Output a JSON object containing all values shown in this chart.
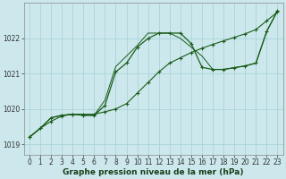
{
  "xlabel": "Graphe pression niveau de la mer (hPa)",
  "bg_color": "#cce8ec",
  "grid_color": "#aad4d8",
  "line_color": "#1a5c1a",
  "ylim": [
    1018.7,
    1023.0
  ],
  "xlim": [
    -0.5,
    23.5
  ],
  "yticks": [
    1019,
    1020,
    1021,
    1022
  ],
  "xticks": [
    0,
    1,
    2,
    3,
    4,
    5,
    6,
    7,
    8,
    9,
    10,
    11,
    12,
    13,
    14,
    15,
    16,
    17,
    18,
    19,
    20,
    21,
    22,
    23
  ],
  "line1_x": [
    0,
    1,
    2,
    3,
    4,
    5,
    6,
    7,
    8,
    9,
    10,
    11,
    12,
    13,
    14,
    15,
    16,
    17,
    18,
    19,
    20,
    21,
    22,
    23
  ],
  "line1_y": [
    1019.2,
    1019.45,
    1019.65,
    1019.8,
    1019.85,
    1019.85,
    1019.85,
    1019.92,
    1020.0,
    1020.15,
    1020.45,
    1020.75,
    1021.05,
    1021.3,
    1021.45,
    1021.6,
    1021.72,
    1021.83,
    1021.93,
    1022.03,
    1022.13,
    1022.25,
    1022.5,
    1022.75
  ],
  "line2_x": [
    0,
    1,
    2,
    3,
    4,
    5,
    6,
    7,
    8,
    9,
    10,
    11,
    12,
    13,
    14,
    15,
    16,
    17,
    18,
    19,
    20,
    21,
    22,
    23
  ],
  "line2_y": [
    1019.2,
    1019.45,
    1019.75,
    1019.82,
    1019.85,
    1019.82,
    1019.82,
    1020.1,
    1021.05,
    1021.3,
    1021.75,
    1022.0,
    1022.15,
    1022.15,
    1022.15,
    1021.85,
    1021.18,
    1021.12,
    1021.12,
    1021.17,
    1021.22,
    1021.3,
    1022.2,
    1022.78
  ],
  "line3_x": [
    0,
    1,
    2,
    3,
    4,
    5,
    6,
    7,
    8,
    9,
    10,
    11,
    12,
    13,
    14,
    15,
    16,
    17,
    18,
    19,
    20,
    21,
    22,
    23
  ],
  "line3_y": [
    1019.2,
    1019.45,
    1019.75,
    1019.82,
    1019.85,
    1019.82,
    1019.82,
    1020.25,
    1021.2,
    1021.5,
    1021.8,
    1022.15,
    1022.15,
    1022.15,
    1022.0,
    1021.75,
    1021.5,
    1021.12,
    1021.12,
    1021.17,
    1021.22,
    1021.3,
    1022.2,
    1022.78
  ],
  "tick_fontsize": 5.5,
  "xlabel_fontsize": 6.5
}
